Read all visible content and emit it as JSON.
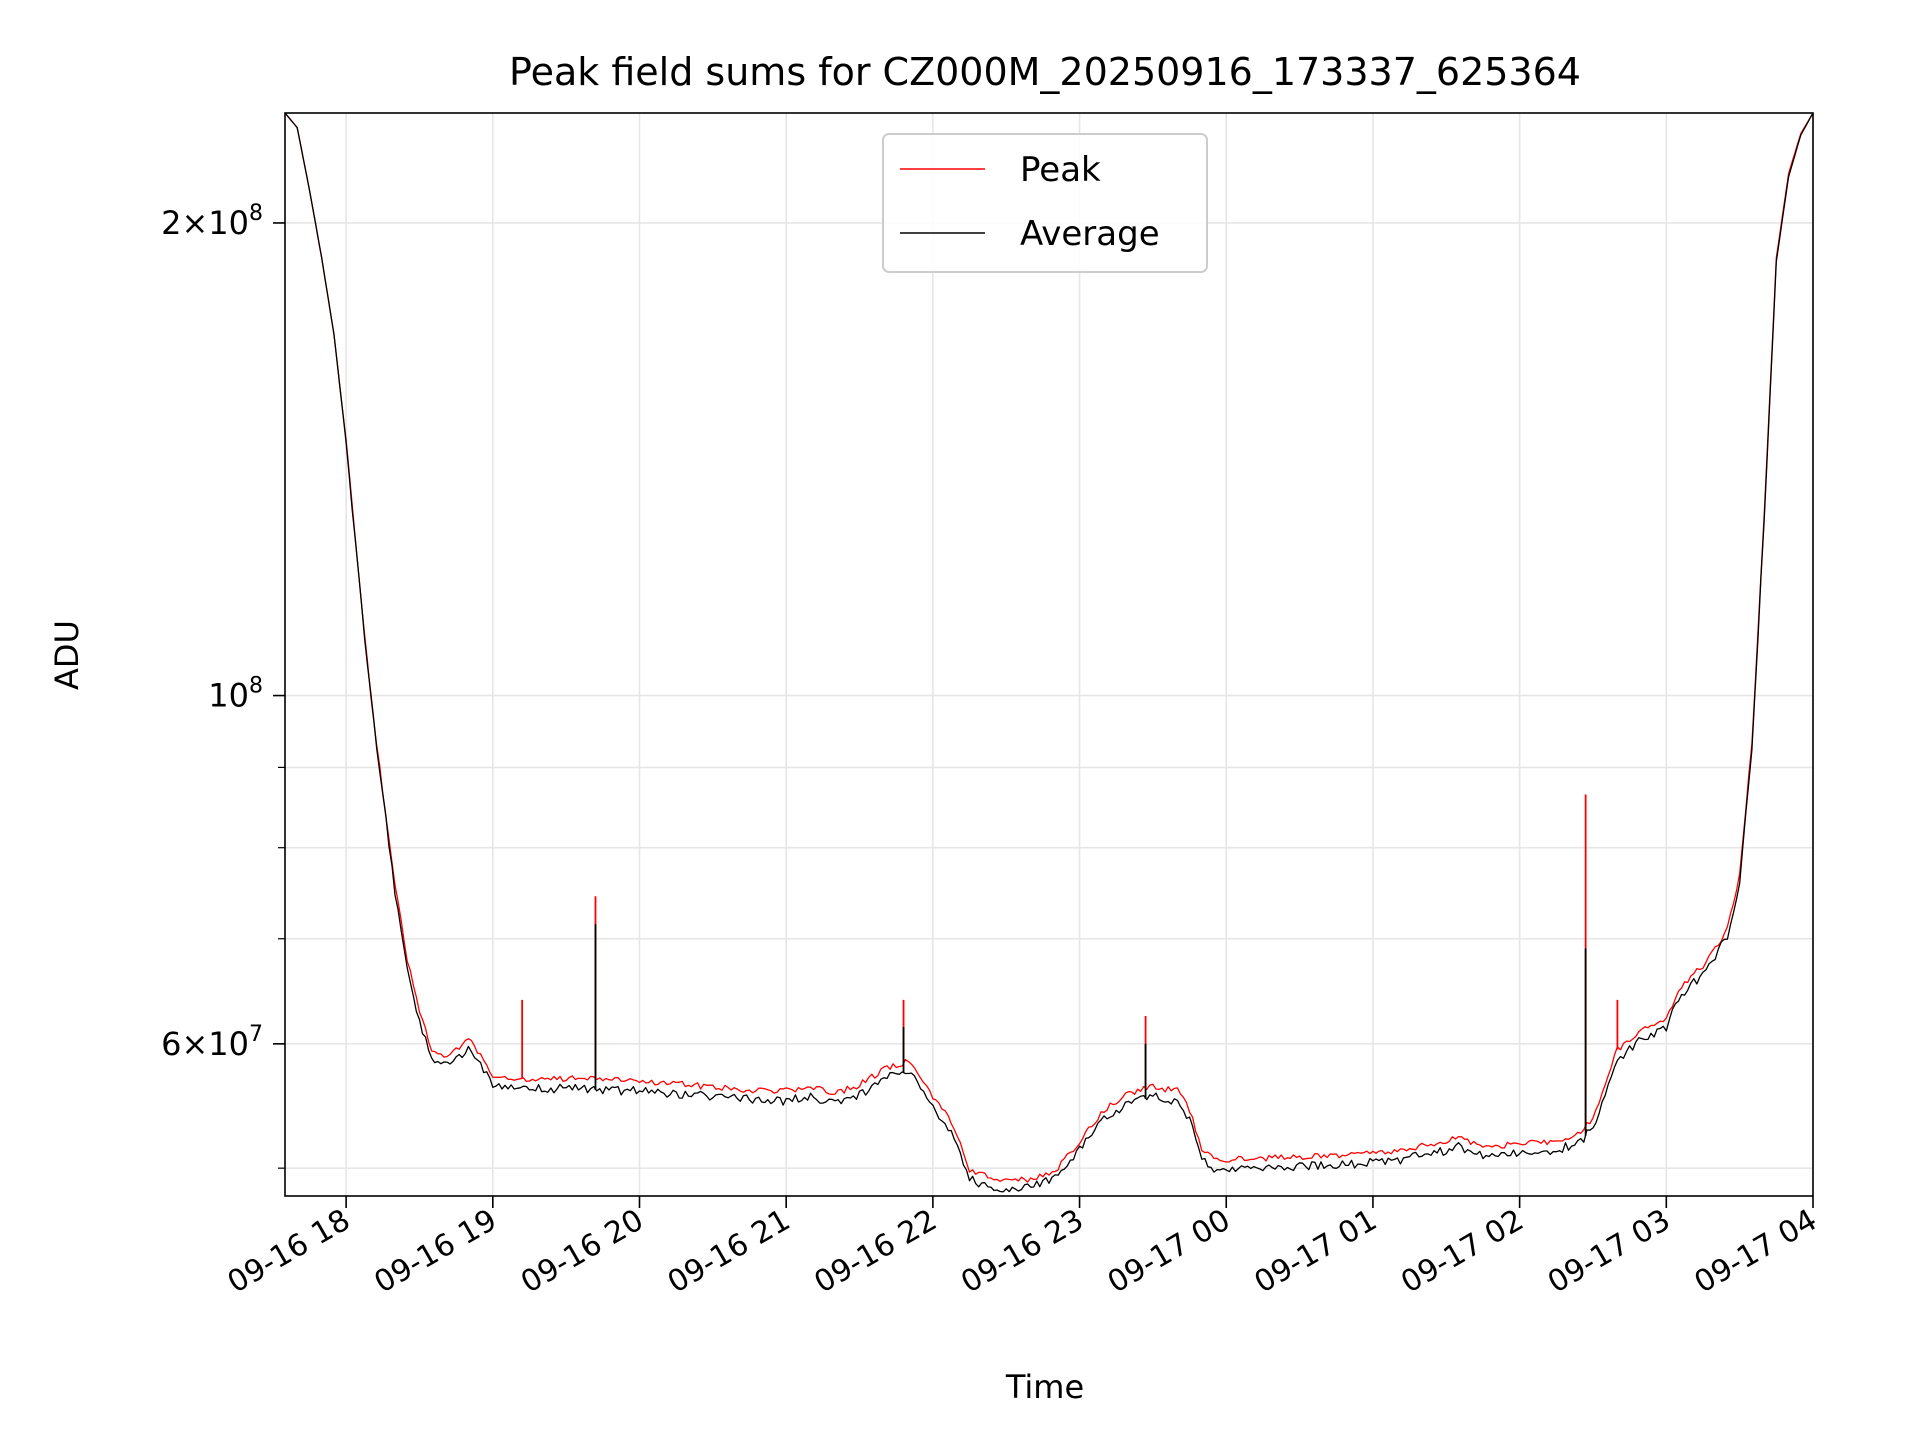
{
  "chart_data": {
    "type": "line",
    "title": "Peak field sums for CZ000M_20250916_173337_625364",
    "xlabel": "Time",
    "ylabel": "ADU",
    "y_scale": "log",
    "ylim": [
      48000000,
      235000000
    ],
    "xlim": [
      "2025-09-16 17:35",
      "2025-09-17 04:00"
    ],
    "grid": true,
    "legend_position": "top-center",
    "x_ticks": [
      {
        "t": "2025-09-16 18:00",
        "label": "09-16 18"
      },
      {
        "t": "2025-09-16 19:00",
        "label": "09-16 19"
      },
      {
        "t": "2025-09-16 20:00",
        "label": "09-16 20"
      },
      {
        "t": "2025-09-16 21:00",
        "label": "09-16 21"
      },
      {
        "t": "2025-09-16 22:00",
        "label": "09-16 22"
      },
      {
        "t": "2025-09-16 23:00",
        "label": "09-16 23"
      },
      {
        "t": "2025-09-17 00:00",
        "label": "09-17 00"
      },
      {
        "t": "2025-09-17 01:00",
        "label": "09-17 01"
      },
      {
        "t": "2025-09-17 02:00",
        "label": "09-17 02"
      },
      {
        "t": "2025-09-17 03:00",
        "label": "09-17 03"
      },
      {
        "t": "2025-09-17 04:00",
        "label": "09-17 04"
      }
    ],
    "y_major_ticks": [
      {
        "value": 200000000,
        "mant": "2",
        "exp": "8"
      },
      {
        "value": 100000000,
        "mant": "",
        "exp": "8"
      },
      {
        "value": 60000000,
        "mant": "6",
        "exp": "7"
      }
    ],
    "y_minor_ticks": [
      50000000,
      70000000,
      80000000,
      90000000
    ],
    "series": [
      {
        "name": "Peak",
        "color": "#ff0000",
        "points": [
          [
            "2025-09-16 17:35",
            235000000
          ],
          [
            "2025-09-16 17:40",
            230000000
          ],
          [
            "2025-09-16 17:45",
            210000000
          ],
          [
            "2025-09-16 17:50",
            190000000
          ],
          [
            "2025-09-16 17:55",
            170000000
          ],
          [
            "2025-09-16 18:00",
            145000000
          ],
          [
            "2025-09-16 18:05",
            120000000
          ],
          [
            "2025-09-16 18:10",
            100000000
          ],
          [
            "2025-09-16 18:15",
            87000000
          ],
          [
            "2025-09-16 18:20",
            76000000
          ],
          [
            "2025-09-16 18:25",
            68000000
          ],
          [
            "2025-09-16 18:30",
            63000000
          ],
          [
            "2025-09-16 18:35",
            59500000
          ],
          [
            "2025-09-16 18:40",
            59000000
          ],
          [
            "2025-09-16 18:45",
            59500000
          ],
          [
            "2025-09-16 18:50",
            60500000
          ],
          [
            "2025-09-16 18:55",
            59000000
          ],
          [
            "2025-09-16 19:00",
            57300000
          ],
          [
            "2025-09-16 19:10",
            57000000
          ],
          [
            "2025-09-16 19:20",
            57000000
          ],
          [
            "2025-09-16 19:30",
            57000000
          ],
          [
            "2025-09-16 19:40",
            57000000
          ],
          [
            "2025-09-16 19:50",
            56900000
          ],
          [
            "2025-09-16 20:00",
            56800000
          ],
          [
            "2025-09-16 20:15",
            56600000
          ],
          [
            "2025-09-16 20:30",
            56300000
          ],
          [
            "2025-09-16 20:45",
            56100000
          ],
          [
            "2025-09-16 21:00",
            56000000
          ],
          [
            "2025-09-16 21:10",
            56300000
          ],
          [
            "2025-09-16 21:20",
            55800000
          ],
          [
            "2025-09-16 21:30",
            56500000
          ],
          [
            "2025-09-16 21:40",
            57800000
          ],
          [
            "2025-09-16 21:50",
            58500000
          ],
          [
            "2025-09-16 21:55",
            57000000
          ],
          [
            "2025-09-16 22:00",
            55500000
          ],
          [
            "2025-09-16 22:05",
            54300000
          ],
          [
            "2025-09-16 22:10",
            52500000
          ],
          [
            "2025-09-16 22:15",
            49800000
          ],
          [
            "2025-09-16 22:25",
            49200000
          ],
          [
            "2025-09-16 22:40",
            49200000
          ],
          [
            "2025-09-16 22:50",
            49800000
          ],
          [
            "2025-09-16 23:00",
            52000000
          ],
          [
            "2025-09-16 23:10",
            54500000
          ],
          [
            "2025-09-16 23:20",
            55800000
          ],
          [
            "2025-09-16 23:30",
            56300000
          ],
          [
            "2025-09-16 23:40",
            56000000
          ],
          [
            "2025-09-16 23:45",
            54500000
          ],
          [
            "2025-09-16 23:50",
            51500000
          ],
          [
            "2025-09-16 23:55",
            50600000
          ],
          [
            "2025-09-17 00:10",
            50700000
          ],
          [
            "2025-09-17 00:30",
            50800000
          ],
          [
            "2025-09-17 00:50",
            51000000
          ],
          [
            "2025-09-17 01:10",
            51300000
          ],
          [
            "2025-09-17 01:25",
            51800000
          ],
          [
            "2025-09-17 01:35",
            52300000
          ],
          [
            "2025-09-17 01:45",
            51600000
          ],
          [
            "2025-09-17 02:00",
            51800000
          ],
          [
            "2025-09-17 02:15",
            52000000
          ],
          [
            "2025-09-17 02:25",
            52700000
          ],
          [
            "2025-09-17 02:30",
            53800000
          ],
          [
            "2025-09-17 02:40",
            59500000
          ],
          [
            "2025-09-17 02:50",
            61200000
          ],
          [
            "2025-09-17 03:00",
            62200000
          ],
          [
            "2025-09-17 03:05",
            65000000
          ],
          [
            "2025-09-17 03:15",
            67300000
          ],
          [
            "2025-09-17 03:25",
            71000000
          ],
          [
            "2025-09-17 03:30",
            77000000
          ],
          [
            "2025-09-17 03:35",
            93000000
          ],
          [
            "2025-09-17 03:40",
            130000000
          ],
          [
            "2025-09-17 03:45",
            190000000
          ],
          [
            "2025-09-17 03:50",
            215000000
          ],
          [
            "2025-09-17 03:55",
            228000000
          ],
          [
            "2025-09-17 04:00",
            235000000
          ]
        ],
        "spikes": [
          [
            "2025-09-16 19:12",
            64000000
          ],
          [
            "2025-09-16 19:42",
            74500000
          ],
          [
            "2025-09-16 21:48",
            64000000
          ],
          [
            "2025-09-16 23:27",
            62500000
          ],
          [
            "2025-09-17 02:27",
            86500000
          ],
          [
            "2025-09-17 02:40",
            64000000
          ]
        ]
      },
      {
        "name": "Average",
        "color": "#000000",
        "points": [
          [
            "2025-09-16 17:35",
            235000000
          ],
          [
            "2025-09-16 17:40",
            230000000
          ],
          [
            "2025-09-16 17:45",
            210000000
          ],
          [
            "2025-09-16 17:50",
            190000000
          ],
          [
            "2025-09-16 17:55",
            170000000
          ],
          [
            "2025-09-16 18:00",
            145000000
          ],
          [
            "2025-09-16 18:05",
            120000000
          ],
          [
            "2025-09-16 18:10",
            100000000
          ],
          [
            "2025-09-16 18:15",
            86500000
          ],
          [
            "2025-09-16 18:20",
            75000000
          ],
          [
            "2025-09-16 18:25",
            67000000
          ],
          [
            "2025-09-16 18:30",
            62000000
          ],
          [
            "2025-09-16 18:35",
            58800000
          ],
          [
            "2025-09-16 18:40",
            58400000
          ],
          [
            "2025-09-16 18:45",
            58700000
          ],
          [
            "2025-09-16 18:50",
            59700000
          ],
          [
            "2025-09-16 18:55",
            58200000
          ],
          [
            "2025-09-16 19:00",
            56500000
          ],
          [
            "2025-09-16 19:10",
            56200000
          ],
          [
            "2025-09-16 19:20",
            56200000
          ],
          [
            "2025-09-16 19:30",
            56200000
          ],
          [
            "2025-09-16 19:40",
            56100000
          ],
          [
            "2025-09-16 19:50",
            56000000
          ],
          [
            "2025-09-16 20:00",
            56000000
          ],
          [
            "2025-09-16 20:15",
            55800000
          ],
          [
            "2025-09-16 20:30",
            55500000
          ],
          [
            "2025-09-16 20:45",
            55300000
          ],
          [
            "2025-09-16 21:00",
            55200000
          ],
          [
            "2025-09-16 21:10",
            55500000
          ],
          [
            "2025-09-16 21:20",
            55000000
          ],
          [
            "2025-09-16 21:30",
            55700000
          ],
          [
            "2025-09-16 21:40",
            57000000
          ],
          [
            "2025-09-16 21:50",
            57700000
          ],
          [
            "2025-09-16 21:55",
            56200000
          ],
          [
            "2025-09-16 22:00",
            54700000
          ],
          [
            "2025-09-16 22:05",
            53500000
          ],
          [
            "2025-09-16 22:10",
            51800000
          ],
          [
            "2025-09-16 22:15",
            49200000
          ],
          [
            "2025-09-16 22:25",
            48600000
          ],
          [
            "2025-09-16 22:40",
            48600000
          ],
          [
            "2025-09-16 22:50",
            49200000
          ],
          [
            "2025-09-16 23:00",
            51300000
          ],
          [
            "2025-09-16 23:10",
            53800000
          ],
          [
            "2025-09-16 23:20",
            55000000
          ],
          [
            "2025-09-16 23:30",
            55500000
          ],
          [
            "2025-09-16 23:40",
            55200000
          ],
          [
            "2025-09-16 23:45",
            53800000
          ],
          [
            "2025-09-16 23:50",
            50800000
          ],
          [
            "2025-09-16 23:55",
            49900000
          ],
          [
            "2025-09-17 00:10",
            50000000
          ],
          [
            "2025-09-17 00:30",
            50100000
          ],
          [
            "2025-09-17 00:50",
            50300000
          ],
          [
            "2025-09-17 01:10",
            50600000
          ],
          [
            "2025-09-17 01:25",
            51100000
          ],
          [
            "2025-09-17 01:35",
            51600000
          ],
          [
            "2025-09-17 01:45",
            50900000
          ],
          [
            "2025-09-17 02:00",
            51100000
          ],
          [
            "2025-09-17 02:15",
            51300000
          ],
          [
            "2025-09-17 02:25",
            52000000
          ],
          [
            "2025-09-17 02:30",
            53100000
          ],
          [
            "2025-09-17 02:40",
            58700000
          ],
          [
            "2025-09-17 02:50",
            60400000
          ],
          [
            "2025-09-17 03:00",
            61400000
          ],
          [
            "2025-09-17 03:05",
            64200000
          ],
          [
            "2025-09-17 03:15",
            66500000
          ],
          [
            "2025-09-17 03:25",
            70200000
          ],
          [
            "2025-09-17 03:30",
            76200000
          ],
          [
            "2025-09-17 03:35",
            92000000
          ],
          [
            "2025-09-17 03:40",
            129000000
          ],
          [
            "2025-09-17 03:45",
            189000000
          ],
          [
            "2025-09-17 03:50",
            214000000
          ],
          [
            "2025-09-17 03:55",
            227500000
          ],
          [
            "2025-09-17 04:00",
            235000000
          ]
        ],
        "spikes": [
          [
            "2025-09-16 19:42",
            71500000
          ],
          [
            "2025-09-16 21:48",
            61500000
          ],
          [
            "2025-09-16 23:27",
            60000000
          ],
          [
            "2025-09-17 02:27",
            69000000
          ]
        ]
      }
    ]
  }
}
